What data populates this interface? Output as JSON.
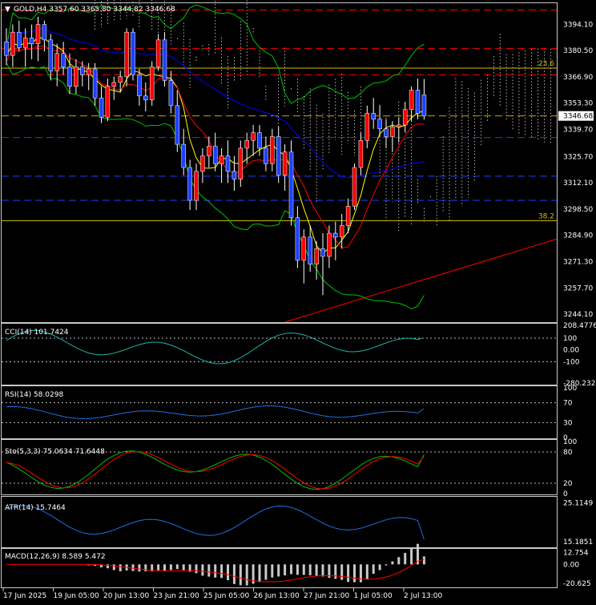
{
  "symbol_header": {
    "arrow": "▼",
    "text": "GOLD,H4  3357.60 3365.80 3344.82 3346.68"
  },
  "colors": {
    "background": "#000000",
    "text": "#ffffff",
    "bull": "#ff0000",
    "bear": "#1e40ff",
    "wick": "#ffffff",
    "ichimoku_cloud": "#ffffff",
    "bollinger": "#00c000",
    "ma_yellow": "#ffff00",
    "ma_red": "#ff0000",
    "ma_blue": "#0000ff",
    "indicator_line": "#1e6fe0",
    "cci_line": "#20b2aa",
    "signal_red": "#ff0000",
    "fib_line": "#d4c000",
    "current_price_line": "#d4a000"
  },
  "chart_data": {
    "type": "candlestick",
    "title": "GOLD,H4",
    "timeframe": "H4",
    "current_price": 3346.68,
    "header_values": {
      "open": 3357.6,
      "high": 3365.8,
      "low": 3344.82,
      "close": 3346.68
    },
    "x_tick_labels": [
      "17 Jun 2025",
      "19 Jun 05:00",
      "20 Jun 13:00",
      "23 Jun 21:00",
      "25 Jun 05:00",
      "26 Jun 13:00",
      "27 Jun 21:00",
      "1 Jul 05:00",
      "2 Jul 13:00"
    ],
    "y_ticks": [
      3394.1,
      3380.5,
      3366.9,
      3353.3,
      3339.7,
      3325.7,
      3312.1,
      3298.5,
      3284.9,
      3271.3,
      3257.7,
      3244.1
    ],
    "ylim": [
      3240,
      3405
    ],
    "fib_levels": [
      {
        "label": "23.6",
        "value": 3371.4
      },
      {
        "label": "38.2",
        "value": 3292.5
      }
    ],
    "red_dashed_levels": [
      3401.5,
      3381.5,
      3368.0
    ],
    "blue_dashed_levels": [
      3335.5,
      3315.5,
      3303.0
    ],
    "trendline": {
      "from": {
        "bar": 44,
        "price": 3240
      },
      "to": {
        "bar": 104,
        "price": 3283
      }
    },
    "candles": [
      [
        3385,
        3392,
        3373,
        3378
      ],
      [
        3378,
        3394,
        3372,
        3390
      ],
      [
        3390,
        3396,
        3380,
        3382
      ],
      [
        3382,
        3392,
        3372,
        3387
      ],
      [
        3387,
        3394,
        3376,
        3384
      ],
      [
        3384,
        3398,
        3375,
        3394
      ],
      [
        3394,
        3396,
        3380,
        3386
      ],
      [
        3386,
        3389,
        3365,
        3370
      ],
      [
        3370,
        3384,
        3362,
        3379
      ],
      [
        3379,
        3385,
        3368,
        3372
      ],
      [
        3372,
        3379,
        3358,
        3362
      ],
      [
        3362,
        3376,
        3358,
        3372
      ],
      [
        3372,
        3375,
        3362,
        3368
      ],
      [
        3368,
        3374,
        3360,
        3371
      ],
      [
        3371,
        3374,
        3352,
        3356
      ],
      [
        3356,
        3362,
        3343,
        3346
      ],
      [
        3346,
        3366,
        3344,
        3362
      ],
      [
        3362,
        3367,
        3355,
        3364
      ],
      [
        3364,
        3370,
        3359,
        3367
      ],
      [
        3367,
        3392,
        3362,
        3390
      ],
      [
        3390,
        3392,
        3365,
        3368
      ],
      [
        3368,
        3371,
        3352,
        3357
      ],
      [
        3357,
        3364,
        3349,
        3355
      ],
      [
        3355,
        3375,
        3352,
        3372
      ],
      [
        3372,
        3389,
        3370,
        3386
      ],
      [
        3386,
        3390,
        3362,
        3365
      ],
      [
        3365,
        3370,
        3348,
        3352
      ],
      [
        3352,
        3360,
        3328,
        3332
      ],
      [
        3332,
        3340,
        3316,
        3320
      ],
      [
        3320,
        3324,
        3298,
        3303
      ],
      [
        3303,
        3322,
        3298,
        3318
      ],
      [
        3318,
        3330,
        3312,
        3326
      ],
      [
        3326,
        3336,
        3320,
        3331
      ],
      [
        3331,
        3338,
        3318,
        3322
      ],
      [
        3322,
        3330,
        3312,
        3326
      ],
      [
        3326,
        3334,
        3312,
        3318
      ],
      [
        3318,
        3326,
        3308,
        3314
      ],
      [
        3314,
        3334,
        3310,
        3330
      ],
      [
        3330,
        3338,
        3322,
        3334
      ],
      [
        3334,
        3342,
        3326,
        3338
      ],
      [
        3338,
        3342,
        3326,
        3330
      ],
      [
        3330,
        3336,
        3318,
        3322
      ],
      [
        3322,
        3340,
        3318,
        3336
      ],
      [
        3336,
        3341,
        3312,
        3316
      ],
      [
        3316,
        3332,
        3308,
        3328
      ],
      [
        3328,
        3334,
        3290,
        3294
      ],
      [
        3294,
        3300,
        3268,
        3272
      ],
      [
        3272,
        3288,
        3260,
        3284
      ],
      [
        3284,
        3290,
        3266,
        3270
      ],
      [
        3270,
        3282,
        3262,
        3278
      ],
      [
        3278,
        3286,
        3254,
        3274
      ],
      [
        3274,
        3290,
        3268,
        3286
      ],
      [
        3286,
        3292,
        3272,
        3284
      ],
      [
        3284,
        3296,
        3278,
        3290
      ],
      [
        3290,
        3304,
        3286,
        3300
      ],
      [
        3300,
        3322,
        3298,
        3320
      ],
      [
        3320,
        3338,
        3316,
        3334
      ],
      [
        3334,
        3352,
        3330,
        3348
      ],
      [
        3348,
        3356,
        3340,
        3345
      ],
      [
        3345,
        3352,
        3336,
        3340
      ],
      [
        3340,
        3345,
        3330,
        3336
      ],
      [
        3336,
        3344,
        3328,
        3341
      ],
      [
        3341,
        3346,
        3333,
        3342
      ],
      [
        3342,
        3354,
        3338,
        3350
      ],
      [
        3350,
        3362,
        3344,
        3360
      ],
      [
        3360,
        3366,
        3345,
        3348
      ],
      [
        3357.6,
        3365.8,
        3344.82,
        3346.68
      ]
    ],
    "indicators": [
      {
        "name": "CCI",
        "label": "CCI(14) 101.7424",
        "value": 101.7424,
        "levels": [
          100,
          -100
        ],
        "tick_labels": [
          "208.4776",
          "100",
          "0.00",
          "-100",
          "-280.2323"
        ],
        "ylim": [
          -280.2323,
          208.4776
        ]
      },
      {
        "name": "RSI",
        "label": "RSI(14) 58.0298",
        "value": 58.0298,
        "levels": [
          70,
          30
        ],
        "tick_labels": [
          "100",
          "70",
          "30",
          "0"
        ],
        "ylim": [
          0,
          100
        ]
      },
      {
        "name": "Stochastic",
        "label": "Sto(5,3,3) 75.0634 71.6448",
        "main": 75.0634,
        "signal": 71.6448,
        "levels": [
          80,
          20
        ],
        "tick_labels": [
          "100",
          "80",
          "20",
          "0"
        ],
        "ylim": [
          0,
          100
        ]
      },
      {
        "name": "ATR",
        "label": "ATR(14) 15.7464",
        "value": 15.7464,
        "tick_labels": [
          "25.1149",
          "15.1851"
        ],
        "ylim": [
          13.9,
          26.3
        ]
      },
      {
        "name": "MACD",
        "label": "MACD(12,26,9) 8.589 5.472",
        "macd": 8.589,
        "signal": 5.472,
        "tick_labels": [
          "12.754",
          "0.00",
          "-20.625"
        ],
        "ylim": [
          -24,
          15
        ]
      }
    ]
  }
}
